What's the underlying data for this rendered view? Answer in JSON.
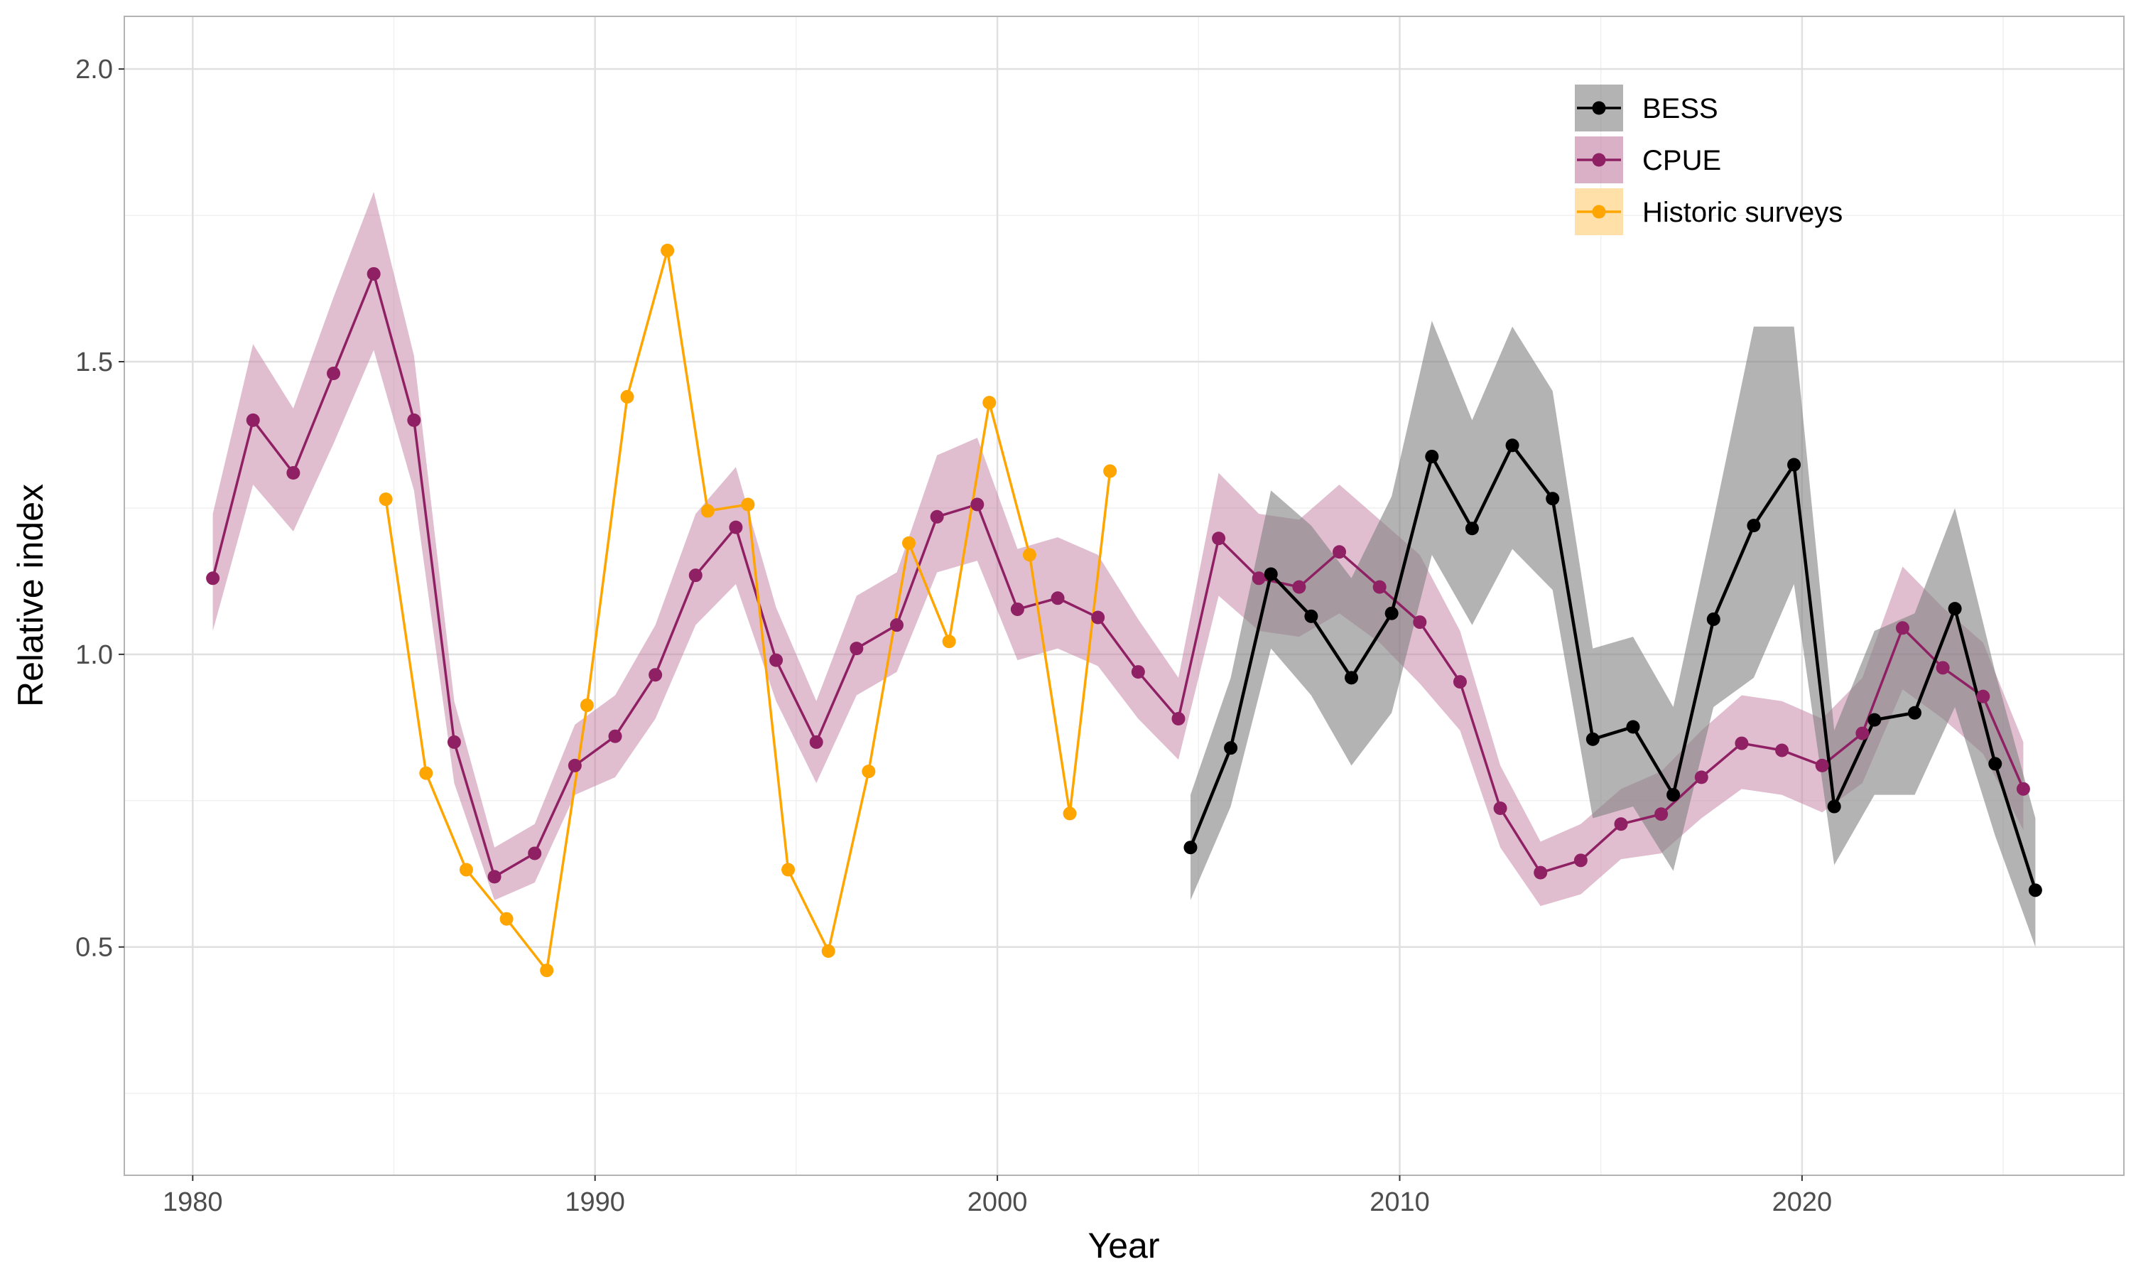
{
  "chart_data": {
    "type": "line",
    "title": "",
    "xlabel": "Year",
    "ylabel": "Relative index",
    "xlim": [
      1978.3,
      2028.0
    ],
    "ylim": [
      0.11,
      2.09
    ],
    "x_ticks": [
      1980,
      1990,
      2000,
      2010,
      2020
    ],
    "y_ticks": [
      0.5,
      1.0,
      1.5,
      2.0
    ],
    "x_tick_labels": [
      "1980",
      "1990",
      "2000",
      "2010",
      "2020"
    ],
    "y_tick_labels": [
      "0.5",
      "1.0",
      "1.5",
      "2.0"
    ],
    "grid": true,
    "legend_position": "top-right",
    "series": [
      {
        "name": "BESS",
        "color": "#000000",
        "band_color": "#808080",
        "x": [
          2004.8,
          2005.8,
          2006.8,
          2007.8,
          2008.8,
          2009.8,
          2010.8,
          2011.8,
          2012.8,
          2013.8,
          2014.8,
          2015.8,
          2016.8,
          2017.8,
          2018.8,
          2019.8,
          2020.8,
          2021.8,
          2022.8,
          2023.8,
          2024.8,
          2025.8
        ],
        "y": [
          0.67,
          0.84,
          1.137,
          1.065,
          0.96,
          1.07,
          1.338,
          1.215,
          1.357,
          1.266,
          0.855,
          0.876,
          0.76,
          1.06,
          1.22,
          1.324,
          0.74,
          0.888,
          0.9,
          1.078,
          0.813,
          0.597
        ],
        "lower": [
          0.58,
          0.74,
          1.01,
          0.93,
          0.81,
          0.9,
          1.17,
          1.05,
          1.18,
          1.11,
          0.72,
          0.74,
          0.63,
          0.91,
          0.96,
          1.12,
          0.64,
          0.76,
          0.76,
          0.91,
          0.69,
          0.5
        ],
        "upper": [
          0.76,
          0.96,
          1.28,
          1.22,
          1.13,
          1.27,
          1.57,
          1.4,
          1.56,
          1.45,
          1.01,
          1.03,
          0.91,
          1.23,
          1.56,
          1.56,
          0.87,
          1.04,
          1.07,
          1.25,
          0.97,
          0.72
        ]
      },
      {
        "name": "CPUE",
        "color": "#8E2063",
        "band_color": "#C27BA0",
        "x": [
          1980.5,
          1981.5,
          1982.5,
          1983.5,
          1984.5,
          1985.5,
          1986.5,
          1987.5,
          1988.5,
          1989.5,
          1990.5,
          1991.5,
          1992.5,
          1993.5,
          1994.5,
          1995.5,
          1996.5,
          1997.5,
          1998.5,
          1999.5,
          2000.5,
          2001.5,
          2002.5,
          2003.5,
          2004.5,
          2005.5,
          2006.5,
          2007.5,
          2008.5,
          2009.5,
          2010.5,
          2011.5,
          2012.5,
          2013.5,
          2014.5,
          2015.5,
          2016.5,
          2017.5,
          2018.5,
          2019.5,
          2020.5,
          2021.5,
          2022.5,
          2023.5,
          2024.5,
          2025.5
        ],
        "y": [
          1.13,
          1.4,
          1.31,
          1.48,
          1.65,
          1.4,
          0.85,
          0.62,
          0.66,
          0.81,
          0.86,
          0.965,
          1.135,
          1.217,
          0.99,
          0.85,
          1.01,
          1.05,
          1.235,
          1.256,
          1.077,
          1.096,
          1.063,
          0.97,
          0.89,
          1.198,
          1.13,
          1.115,
          1.175,
          1.115,
          1.055,
          0.953,
          0.737,
          0.627,
          0.648,
          0.71,
          0.727,
          0.79,
          0.848,
          0.836,
          0.81,
          0.865,
          1.045,
          0.977,
          0.928,
          0.77
        ],
        "lower": [
          1.04,
          1.29,
          1.21,
          1.36,
          1.52,
          1.28,
          0.78,
          0.58,
          0.61,
          0.76,
          0.79,
          0.89,
          1.05,
          1.12,
          0.92,
          0.78,
          0.93,
          0.97,
          1.14,
          1.16,
          0.99,
          1.01,
          0.98,
          0.89,
          0.82,
          1.1,
          1.04,
          1.03,
          1.07,
          1.02,
          0.95,
          0.87,
          0.67,
          0.57,
          0.59,
          0.65,
          0.66,
          0.72,
          0.77,
          0.76,
          0.73,
          0.78,
          0.94,
          0.89,
          0.83,
          0.7
        ],
        "upper": [
          1.24,
          1.53,
          1.42,
          1.61,
          1.79,
          1.51,
          0.92,
          0.67,
          0.71,
          0.88,
          0.93,
          1.05,
          1.24,
          1.32,
          1.08,
          0.92,
          1.1,
          1.14,
          1.34,
          1.37,
          1.18,
          1.2,
          1.17,
          1.06,
          0.96,
          1.31,
          1.24,
          1.23,
          1.29,
          1.23,
          1.17,
          1.04,
          0.81,
          0.68,
          0.71,
          0.77,
          0.8,
          0.87,
          0.93,
          0.92,
          0.89,
          0.96,
          1.15,
          1.08,
          1.02,
          0.85
        ]
      },
      {
        "name": "Historic surveys",
        "color": "#FFA500",
        "band_color": "#FFE0A8",
        "x": [
          1984.8,
          1985.8,
          1986.8,
          1987.8,
          1988.8,
          1989.8,
          1990.8,
          1991.8,
          1992.8,
          1993.8,
          1994.8,
          1995.8,
          1996.8,
          1997.8,
          1998.8,
          1999.8,
          2000.8,
          2001.8,
          2002.8
        ],
        "y": [
          1.265,
          0.797,
          0.632,
          0.548,
          0.46,
          0.913,
          1.44,
          1.69,
          1.245,
          1.256,
          0.632,
          0.493,
          0.8,
          1.19,
          1.022,
          1.43,
          1.17,
          0.728,
          1.313
        ]
      }
    ]
  }
}
